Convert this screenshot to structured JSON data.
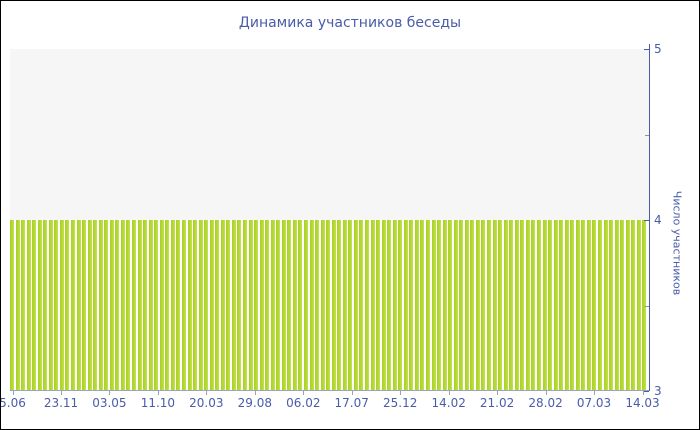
{
  "window": {
    "background": "#ffffff",
    "border_color": "#000000"
  },
  "colors": {
    "accent_text": "#4a5ca8",
    "bar_fill": "#b3d834",
    "bar_fill_dark": "#a8d128",
    "bar_fill_light": "#c4e354",
    "upper_band_fill": "#f6f6f7",
    "x_tick_color": "#98a2c0"
  },
  "chart_data": {
    "type": "bar",
    "title": "Динамика участников беседы",
    "xlabel": "",
    "ylabel": "Число участников",
    "ylim": [
      3,
      5
    ],
    "y_axis_side": "right",
    "y_major_ticks": [
      5,
      4,
      3
    ],
    "y_tick_labels": [
      "5",
      "4",
      "3"
    ],
    "y_minor_ticks": [
      4.5,
      3.5
    ],
    "grid": "off",
    "legend": "none",
    "plot_bands": [
      {
        "from": 4,
        "to": 5,
        "color": "#f6f6f7"
      }
    ],
    "x_tick_labels": [
      "5.06",
      "23.11",
      "03.05",
      "11.10",
      "20.03",
      "29.08",
      "06.02",
      "17.07",
      "25.12",
      "14.02",
      "21.02",
      "28.02",
      "07.03",
      "14.03"
    ],
    "bar_count": 115,
    "values": [
      4,
      4,
      4,
      4,
      4,
      4,
      4,
      4,
      4,
      4,
      4,
      4,
      4,
      4,
      4,
      4,
      4,
      4,
      4,
      4,
      4,
      4,
      4,
      4,
      4,
      4,
      4,
      4,
      4,
      4,
      4,
      4,
      4,
      4,
      4,
      4,
      4,
      4,
      4,
      4,
      4,
      4,
      4,
      4,
      4,
      4,
      4,
      4,
      4,
      4,
      4,
      4,
      4,
      4,
      4,
      4,
      4,
      4,
      4,
      4,
      4,
      4,
      4,
      4,
      4,
      4,
      4,
      4,
      4,
      4,
      4,
      4,
      4,
      4,
      4,
      4,
      4,
      4,
      4,
      4,
      4,
      4,
      4,
      4,
      4,
      4,
      4,
      4,
      4,
      4,
      4,
      4,
      4,
      4,
      4,
      4,
      4,
      4,
      4,
      4,
      4,
      4,
      4,
      4,
      4,
      4,
      4,
      4,
      4,
      4,
      4,
      4,
      4,
      4,
      4
    ]
  }
}
